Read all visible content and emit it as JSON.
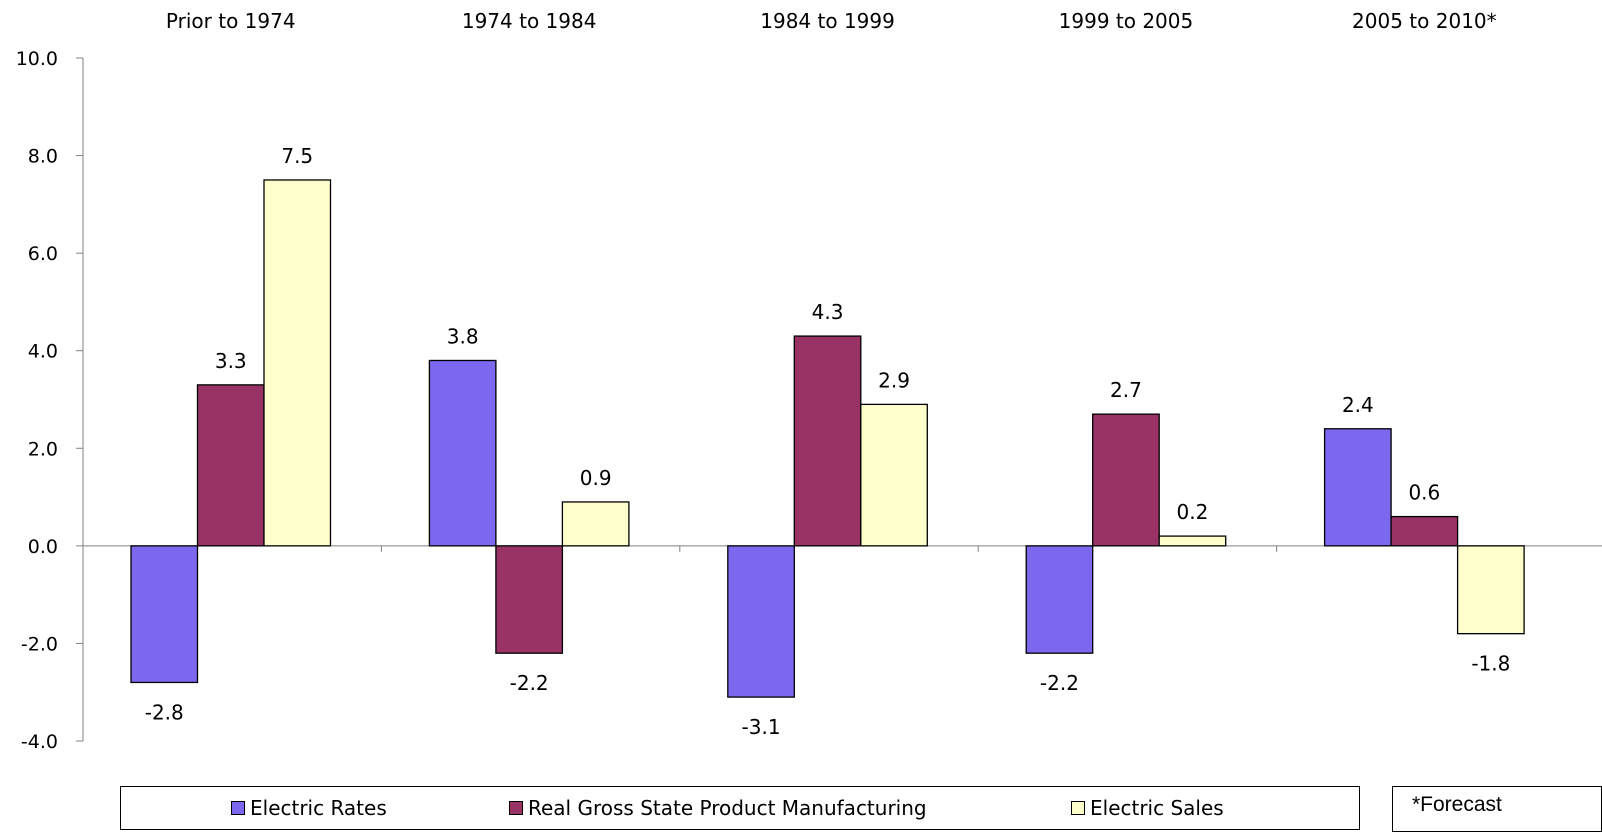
{
  "chart_data": {
    "type": "bar",
    "categories": [
      "Prior to 1974",
      "1974 to 1984",
      "1984 to 1999",
      "1999 to 2005",
      "2005 to 2010*"
    ],
    "series": [
      {
        "name": "Electric Rates",
        "values": [
          -2.8,
          3.8,
          -3.1,
          -2.2,
          2.4
        ],
        "labels": [
          "-2.8",
          "3.8",
          "-3.1",
          "-2.2",
          "2.4"
        ],
        "color": "#7B68EE"
      },
      {
        "name": "Real Gross State Product Manufacturing",
        "values": [
          3.3,
          -2.2,
          4.3,
          2.7,
          0.6
        ],
        "labels": [
          "3.3",
          "-2.2",
          "4.3",
          "2.7",
          "0.6"
        ],
        "color": "#993366"
      },
      {
        "name": "Electric Sales",
        "values": [
          7.5,
          0.9,
          2.9,
          0.2,
          -1.8
        ],
        "labels": [
          "7.5",
          "0.9",
          "2.9",
          "0.2",
          "-1.8"
        ],
        "color": "#FFFFCC"
      }
    ],
    "yticks": [
      "10.0",
      "8.0",
      "6.0",
      "4.0",
      "2.0",
      "0.0",
      "-2.0",
      "-4.0"
    ],
    "ylim": [
      -4,
      10
    ],
    "xlabel": "",
    "ylabel": "",
    "grid": false,
    "legend_position": "bottom",
    "note": "*Forecast"
  }
}
